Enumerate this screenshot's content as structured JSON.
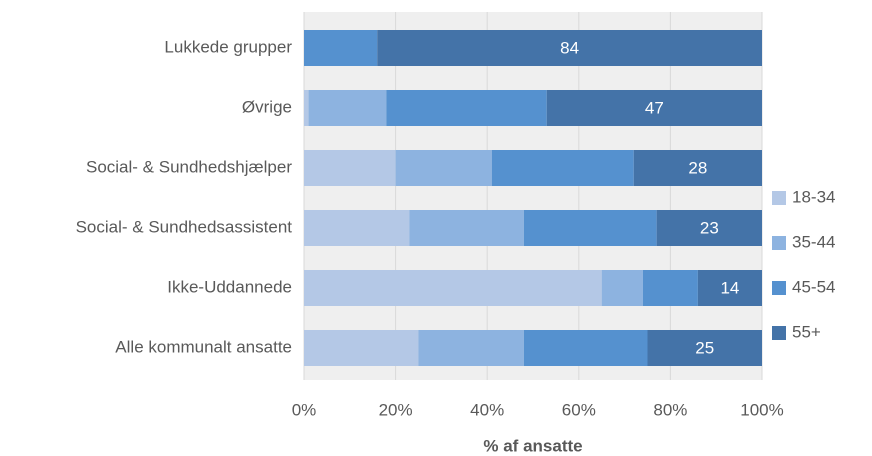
{
  "chart_data": {
    "type": "stacked_barh",
    "xlabel": "% af ansatte",
    "categories": [
      "Lukkede grupper",
      "Øvrige",
      "Social- & Sundhedshjælper",
      "Social- & Sundhedsassistent",
      "Ikke-Uddannede",
      "Alle kommunalt ansatte"
    ],
    "series": [
      {
        "name": "18-34",
        "color": "#b4c8e6",
        "values": [
          0,
          1,
          20,
          23,
          65,
          25
        ],
        "show_labels": false
      },
      {
        "name": "35-44",
        "color": "#8db3e0",
        "values": [
          0,
          17,
          21,
          25,
          9,
          23
        ],
        "show_labels": false
      },
      {
        "name": "45-54",
        "color": "#5591cf",
        "values": [
          16,
          35,
          31,
          29,
          12,
          27
        ],
        "show_labels": false
      },
      {
        "name": "55+",
        "color": "#4473a8",
        "values": [
          84,
          47,
          28,
          23,
          14,
          25
        ],
        "show_labels": true
      }
    ],
    "xlim": [
      0,
      100
    ],
    "xticks": [
      {
        "value": 0,
        "label": "0%"
      },
      {
        "value": 20,
        "label": "20%"
      },
      {
        "value": 40,
        "label": "40%"
      },
      {
        "value": 60,
        "label": "60%"
      },
      {
        "value": 80,
        "label": "80%"
      },
      {
        "value": 100,
        "label": "100%"
      }
    ],
    "grid": true,
    "legend": "right"
  }
}
